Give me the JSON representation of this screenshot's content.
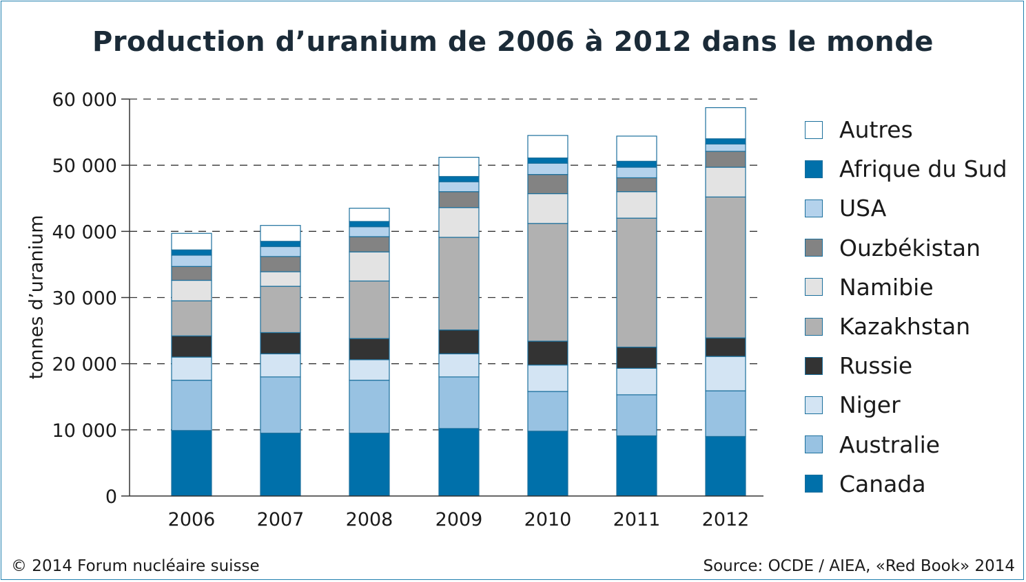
{
  "chart_data": {
    "type": "bar",
    "stacked": true,
    "title": "Production d’uranium de 2006 à 2012 dans le monde",
    "ylabel": "tonnes d’uranium",
    "xlabel": "",
    "ylim": [
      0,
      60000
    ],
    "yticks": [
      {
        "value": 0,
        "label": "0"
      },
      {
        "value": 10000,
        "label": "10 000"
      },
      {
        "value": 20000,
        "label": "20 000"
      },
      {
        "value": 30000,
        "label": "30 000"
      },
      {
        "value": 40000,
        "label": "40 000"
      },
      {
        "value": 50000,
        "label": "50 000"
      },
      {
        "value": 60000,
        "label": "60 000"
      }
    ],
    "grid": true,
    "legend_position": "right",
    "categories": [
      "2006",
      "2007",
      "2008",
      "2009",
      "2010",
      "2011",
      "2012"
    ],
    "series": [
      {
        "name": "Canada",
        "color": "#0070aa",
        "values": [
          9900,
          9500,
          9500,
          10200,
          9800,
          9100,
          9000
        ]
      },
      {
        "name": "Australie",
        "color": "#98c2e2",
        "values": [
          7600,
          8500,
          8000,
          7800,
          6000,
          6200,
          6900
        ]
      },
      {
        "name": "Niger",
        "color": "#d3e4f3",
        "values": [
          3500,
          3500,
          3100,
          3500,
          4000,
          4000,
          5200
        ]
      },
      {
        "name": "Russie",
        "color": "#333333",
        "values": [
          3200,
          3200,
          3200,
          3600,
          3600,
          3200,
          2800
        ]
      },
      {
        "name": "Kazakhstan",
        "color": "#b1b1b1",
        "values": [
          5300,
          7000,
          8700,
          14000,
          17800,
          19500,
          21300
        ]
      },
      {
        "name": "Namibie",
        "color": "#e3e3e3",
        "values": [
          3100,
          2200,
          4400,
          4500,
          4500,
          4000,
          4500
        ]
      },
      {
        "name": "Ouzbékistan",
        "color": "#838383",
        "values": [
          2100,
          2300,
          2300,
          2400,
          2900,
          2100,
          2400
        ]
      },
      {
        "name": "USA",
        "color": "#b4d2ec",
        "values": [
          1700,
          1500,
          1500,
          1500,
          1700,
          1600,
          1100
        ]
      },
      {
        "name": "Afrique du Sud",
        "color": "#0070aa",
        "values": [
          800,
          800,
          800,
          800,
          800,
          900,
          800
        ]
      },
      {
        "name": "Autres",
        "color": "#ffffff",
        "values": [
          2500,
          2400,
          2000,
          2900,
          3400,
          3800,
          4700
        ]
      }
    ]
  },
  "footer": {
    "copyright": "© 2014 Forum nucléaire suisse",
    "source": "Source: OCDE / AIEA, «Red Book» 2014"
  },
  "colors": {
    "frame": "#1f7fae",
    "outline": "#1a6f9c",
    "title": "#1b2b38"
  }
}
